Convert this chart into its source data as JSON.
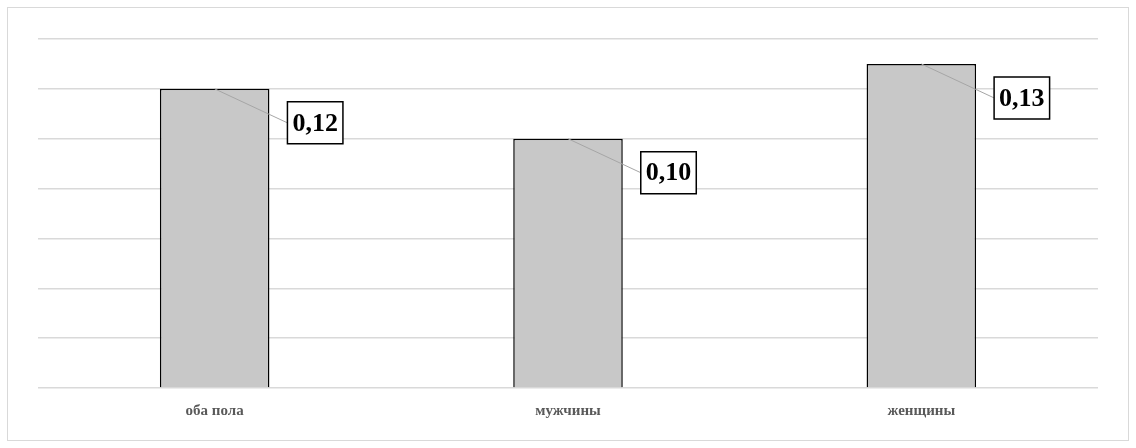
{
  "chart_data": {
    "type": "bar",
    "categories": [
      "оба пола",
      "мужчины",
      "женщины"
    ],
    "values": [
      0.12,
      0.1,
      0.13
    ],
    "color": "#c8c8c8",
    "data_labels": true,
    "value_labels": [
      "0,12",
      "0,10",
      "0,13"
    ],
    "ylim": [
      0,
      0.14
    ],
    "tick_labels": "x",
    "grid": "y",
    "legend": false
  }
}
